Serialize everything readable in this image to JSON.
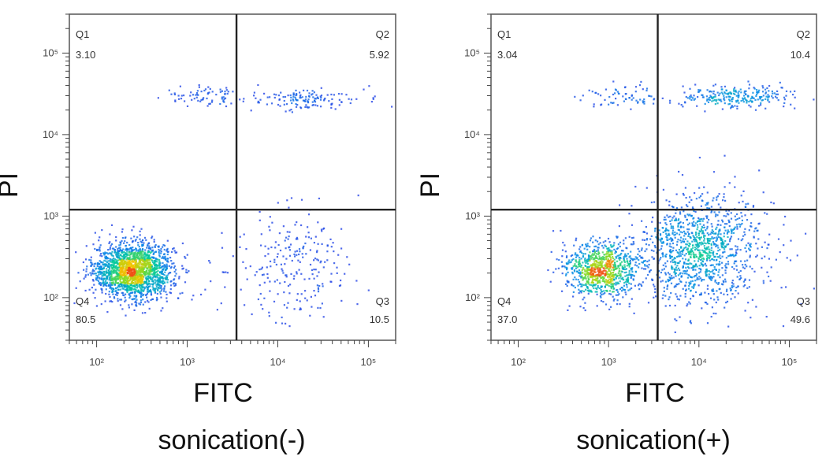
{
  "chart_data": [
    {
      "type": "scatter",
      "caption": "sonication(-)",
      "xlabel": "FITC",
      "ylabel": "PI",
      "x_scale": "log",
      "y_scale": "log",
      "xlim": [
        50,
        200000
      ],
      "ylim": [
        30,
        300000
      ],
      "x_ticks": [
        100,
        1000,
        10000,
        100000
      ],
      "y_ticks": [
        100,
        1000,
        10000,
        100000
      ],
      "x_tick_labels": [
        "10²",
        "10³",
        "10⁴",
        "10⁵"
      ],
      "y_tick_labels": [
        "10²",
        "10³",
        "10⁴",
        "10⁵"
      ],
      "gate": {
        "x": 3500,
        "y": 1200
      },
      "quadrants": [
        {
          "id": "Q1",
          "value": "3.10"
        },
        {
          "id": "Q2",
          "value": "5.92"
        },
        {
          "id": "Q3",
          "value": "10.5"
        },
        {
          "id": "Q4",
          "value": "80.5"
        }
      ],
      "populations": [
        {
          "x": 250,
          "y": 220,
          "sx": 0.22,
          "sy": 0.17,
          "weight": 0.8
        },
        {
          "x": 1500,
          "y": 30000,
          "sx": 0.25,
          "sy": 0.06,
          "weight": 0.03
        },
        {
          "x": 20000,
          "y": 28000,
          "sx": 0.3,
          "sy": 0.07,
          "weight": 0.06
        },
        {
          "x": 15000,
          "y": 250,
          "sx": 0.35,
          "sy": 0.35,
          "weight": 0.1
        }
      ]
    },
    {
      "type": "scatter",
      "caption": "sonication(+)",
      "xlabel": "FITC",
      "ylabel": "PI",
      "x_scale": "log",
      "y_scale": "log",
      "xlim": [
        50,
        200000
      ],
      "ylim": [
        30,
        300000
      ],
      "x_ticks": [
        100,
        1000,
        10000,
        100000
      ],
      "y_ticks": [
        100,
        1000,
        10000,
        100000
      ],
      "x_tick_labels": [
        "10²",
        "10³",
        "10⁴",
        "10⁵"
      ],
      "y_tick_labels": [
        "10²",
        "10³",
        "10⁴",
        "10⁵"
      ],
      "gate": {
        "x": 3500,
        "y": 1200
      },
      "quadrants": [
        {
          "id": "Q1",
          "value": "3.04"
        },
        {
          "id": "Q2",
          "value": "10.4"
        },
        {
          "id": "Q3",
          "value": "49.6"
        },
        {
          "id": "Q4",
          "value": "37.0"
        }
      ],
      "populations": [
        {
          "x": 800,
          "y": 220,
          "sx": 0.2,
          "sy": 0.17,
          "weight": 0.37
        },
        {
          "x": 1500,
          "y": 30000,
          "sx": 0.3,
          "sy": 0.07,
          "weight": 0.03
        },
        {
          "x": 25000,
          "y": 30000,
          "sx": 0.35,
          "sy": 0.07,
          "weight": 0.1
        },
        {
          "x": 10000,
          "y": 400,
          "sx": 0.35,
          "sy": 0.35,
          "weight": 0.5
        }
      ]
    }
  ]
}
